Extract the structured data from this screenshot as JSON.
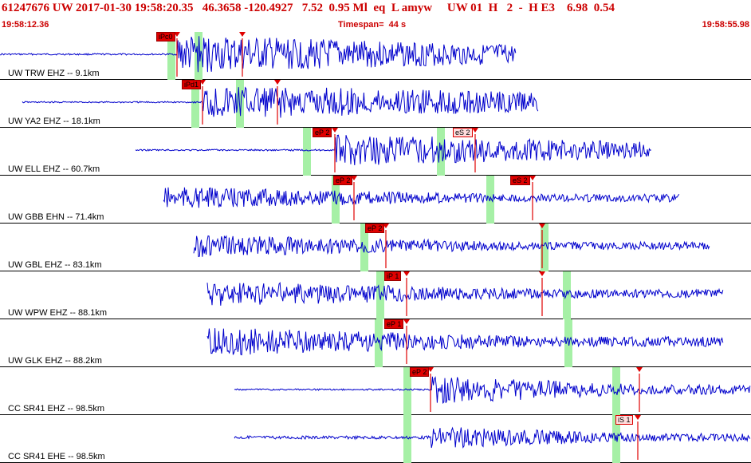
{
  "header": {
    "title": "61247676 UW 2017-01-30 19:58:20.35   46.3658 -120.4927   7.52  0.95 Ml  eq  L amyw     UW 01  H   2  -  H E3    6.98  0.54",
    "start_time": "19:58:12.36",
    "timespan": "Timespan=  44 s",
    "end_time": "19:58:55.98"
  },
  "colors": {
    "trace": "#0000cc",
    "pick": "#e00000",
    "window": "#a6f0a6",
    "text_red": "#cc0000"
  },
  "traces": [
    {
      "label": "UW TRW EHZ -- 9.1km",
      "picks": [
        "iPc0"
      ]
    },
    {
      "label": "UW YA2 EHZ -- 18.1km",
      "picks": [
        "iPd1"
      ]
    },
    {
      "label": "UW ELL EHZ -- 60.7km",
      "picks": [
        "eP 2",
        "eS 2"
      ]
    },
    {
      "label": "UW GBB EHN -- 71.4km",
      "picks": [
        "eP 2",
        "eS 2"
      ]
    },
    {
      "label": "UW GBL EHZ -- 83.1km",
      "picks": [
        "eP 2"
      ]
    },
    {
      "label": "UW WPW EHZ -- 88.1km",
      "picks": [
        "iP 1"
      ]
    },
    {
      "label": "UW GLK EHZ -- 88.2km",
      "picks": [
        "eP 1"
      ]
    },
    {
      "label": "CC SR41 EHZ -- 98.5km",
      "picks": [
        "eP 2"
      ]
    },
    {
      "label": "CC SR41 EHE -- 98.5km",
      "picks": [
        "iS 1"
      ]
    }
  ]
}
